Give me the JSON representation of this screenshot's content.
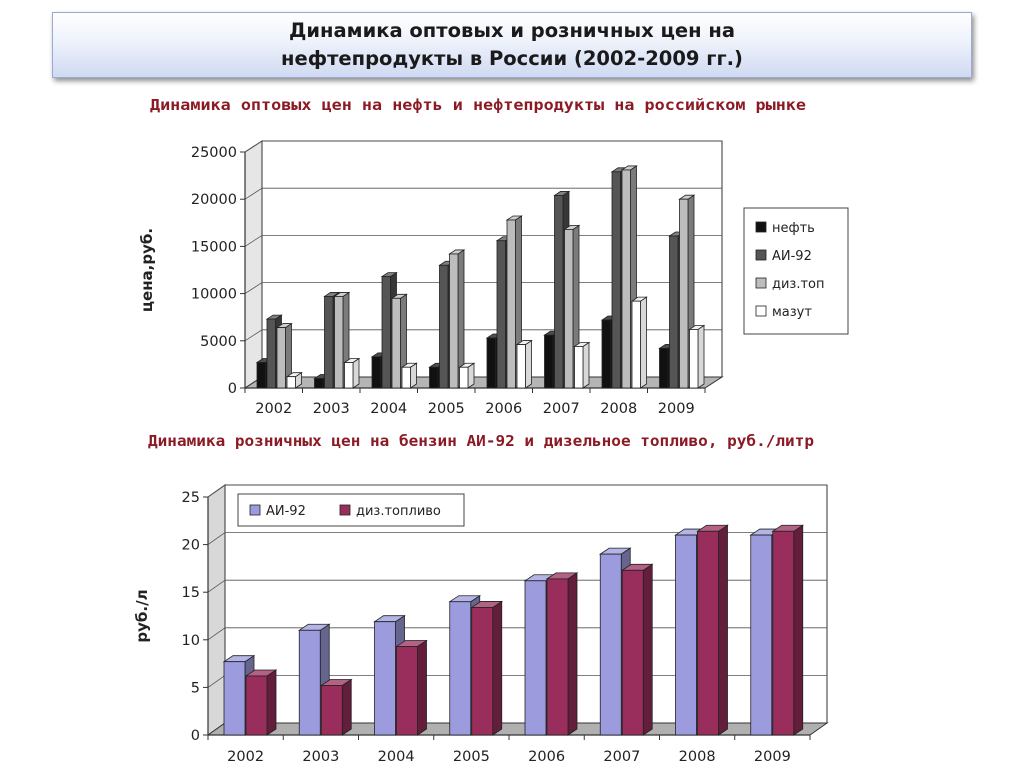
{
  "slide": {
    "title_line1": "Динамика оптовых и розничных цен на",
    "title_line2": "нефтепродукты в России (2002-2009 гг.)"
  },
  "chart_data": [
    {
      "type": "bar",
      "title": "Динамика оптовых цен на нефть и нефтепродукты на российском рынке",
      "xlabel": "",
      "ylabel": "цена,руб.",
      "categories": [
        "2002",
        "2003",
        "2004",
        "2005",
        "2006",
        "2007",
        "2008",
        "2009"
      ],
      "ylim": [
        0,
        25000
      ],
      "yticks": [
        0,
        5000,
        10000,
        15000,
        20000,
        25000
      ],
      "grid": true,
      "legend_position": "right",
      "series": [
        {
          "name": "нефть",
          "color": "#111111",
          "values": [
            2700,
            1000,
            3300,
            2200,
            5300,
            5600,
            7200,
            4200
          ]
        },
        {
          "name": "АИ-92",
          "color": "#555555",
          "values": [
            7300,
            9700,
            11800,
            13000,
            15600,
            20400,
            22900,
            16100
          ]
        },
        {
          "name": "диз.топ",
          "color": "#bdbdbd",
          "values": [
            6400,
            9700,
            9500,
            14200,
            17800,
            16800,
            23100,
            20000
          ]
        },
        {
          "name": "мазут",
          "color": "#ffffff",
          "values": [
            1200,
            2700,
            2200,
            2200,
            4600,
            4400,
            9200,
            6200
          ]
        }
      ]
    },
    {
      "type": "bar",
      "title": "Динамика розничных цен на бензин АИ-92 и дизельное топливо, руб./литр",
      "xlabel": "",
      "ylabel": "руб./л",
      "categories": [
        "2002",
        "2003",
        "2004",
        "2005",
        "2006",
        "2007",
        "2008",
        "2009"
      ],
      "ylim": [
        0,
        25
      ],
      "yticks": [
        0,
        5,
        10,
        15,
        20,
        25
      ],
      "grid": true,
      "legend_position": "top-left",
      "series": [
        {
          "name": "АИ-92",
          "color": "#9b9bde",
          "values": [
            7.7,
            11.0,
            11.9,
            14.0,
            16.2,
            19.0,
            21.0,
            21.0
          ]
        },
        {
          "name": "диз.топливо",
          "color": "#992e5c",
          "values": [
            6.2,
            5.2,
            9.3,
            13.4,
            16.4,
            17.3,
            21.4,
            21.4
          ]
        }
      ]
    }
  ]
}
